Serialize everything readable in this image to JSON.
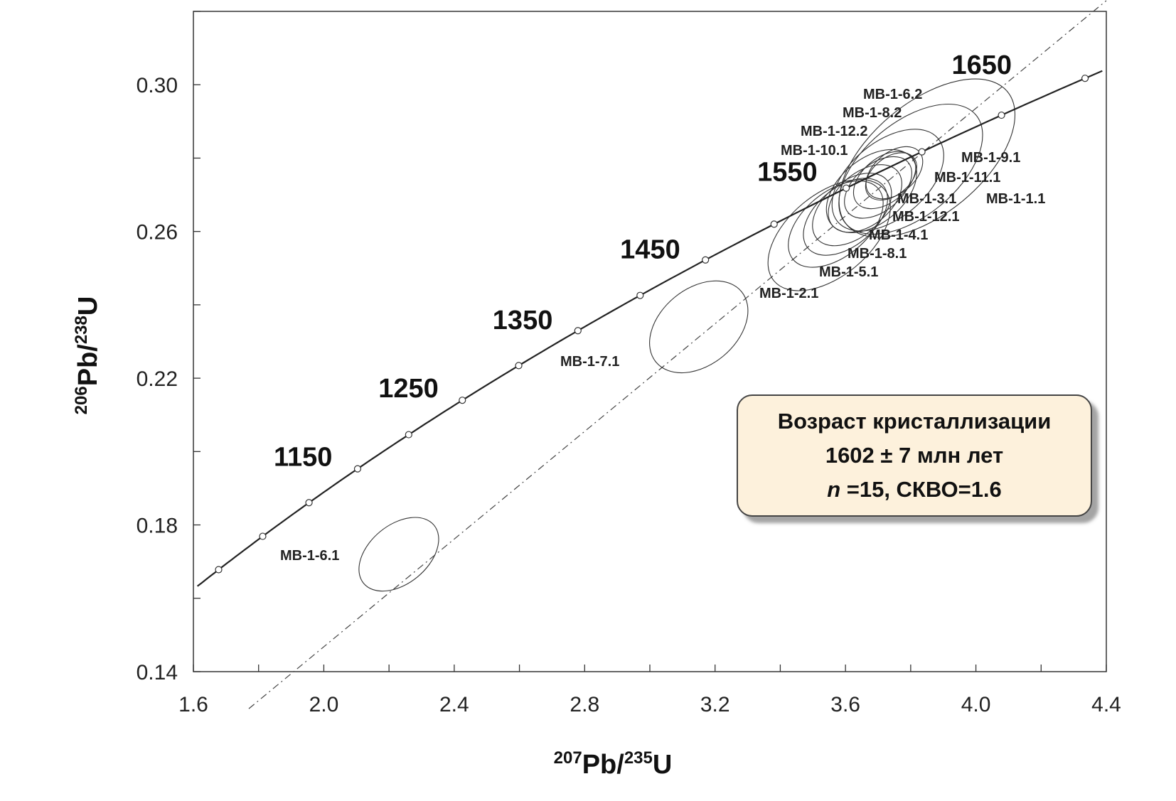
{
  "chart_data": {
    "type": "scatter",
    "title": "",
    "xlabel": {
      "sup": "207",
      "base": "Pb/",
      "sup2": "235",
      "base2": "U"
    },
    "ylabel": {
      "sup": "206",
      "base": "Pb/",
      "sup2": "238",
      "base2": "U"
    },
    "xlim": [
      1.6,
      4.4
    ],
    "ylim": [
      0.14,
      0.32
    ],
    "xticks": [
      "1.6",
      "2.0",
      "2.4",
      "2.8",
      "3.2",
      "3.6",
      "4.0",
      "4.4"
    ],
    "yticks": [
      "0.14",
      "0.18",
      "0.22",
      "0.26",
      "0.30"
    ],
    "concordia_age_labels": [
      {
        "label": "1150",
        "age": 1150
      },
      {
        "label": "1250",
        "age": 1250
      },
      {
        "label": "1350",
        "age": 1350
      },
      {
        "label": "1450",
        "age": 1450
      },
      {
        "label": "1550",
        "age": 1550
      },
      {
        "label": "1650",
        "age": 1650
      }
    ],
    "concordia_marker_ages": [
      1000,
      1050,
      1100,
      1150,
      1200,
      1250,
      1300,
      1350,
      1400,
      1450,
      1500,
      1550,
      1600,
      1650,
      1700
    ],
    "discordia": {
      "upper_intercept_ma": 1602,
      "lower_intercept_ma": 0
    },
    "spots": [
      {
        "label": "MB-1-6.2",
        "x": 3.85,
        "y": 0.28,
        "rx": 0.32,
        "ry": 0.0095
      },
      {
        "label": "MB-1-8.2",
        "x": 3.8,
        "y": 0.277,
        "rx": 0.26,
        "ry": 0.008
      },
      {
        "label": "MB-1-12.2",
        "x": 3.73,
        "y": 0.274,
        "rx": 0.2,
        "ry": 0.0065
      },
      {
        "label": "MB-1-10.1",
        "x": 3.68,
        "y": 0.271,
        "rx": 0.16,
        "ry": 0.0055
      },
      {
        "label": "MB-1-9.1",
        "x": 3.75,
        "y": 0.276,
        "rx": 0.1,
        "ry": 0.0035
      },
      {
        "label": "MB-1-11.1",
        "x": 3.72,
        "y": 0.274,
        "rx": 0.11,
        "ry": 0.0038
      },
      {
        "label": "MB-1-3.1",
        "x": 3.7,
        "y": 0.272,
        "rx": 0.12,
        "ry": 0.004
      },
      {
        "label": "MB-1-1.1",
        "x": 3.74,
        "y": 0.275,
        "rx": 0.09,
        "ry": 0.0032
      },
      {
        "label": "MB-1-12.1",
        "x": 3.66,
        "y": 0.269,
        "rx": 0.13,
        "ry": 0.0045
      },
      {
        "label": "MB-1-4.1",
        "x": 3.62,
        "y": 0.266,
        "rx": 0.14,
        "ry": 0.0048
      },
      {
        "label": "MB-1-8.1",
        "x": 3.6,
        "y": 0.264,
        "rx": 0.15,
        "ry": 0.005
      },
      {
        "label": "MB-1-5.1",
        "x": 3.57,
        "y": 0.262,
        "rx": 0.17,
        "ry": 0.0055
      },
      {
        "label": "MB-1-2.1",
        "x": 3.55,
        "y": 0.259,
        "rx": 0.22,
        "ry": 0.007
      },
      {
        "label": "MB-1-7.1",
        "x": 3.15,
        "y": 0.234,
        "rx": 0.17,
        "ry": 0.0065
      },
      {
        "label": "MB-1-6.1",
        "x": 2.23,
        "y": 0.172,
        "rx": 0.14,
        "ry": 0.005
      }
    ],
    "legend": "bottom-right"
  },
  "result_box": {
    "line1": "Возраст кристаллизации",
    "line2": "1602 ± 7  млн лет",
    "line3_italic": "n",
    "line3_rest": " =15, СКВО=1.6"
  }
}
